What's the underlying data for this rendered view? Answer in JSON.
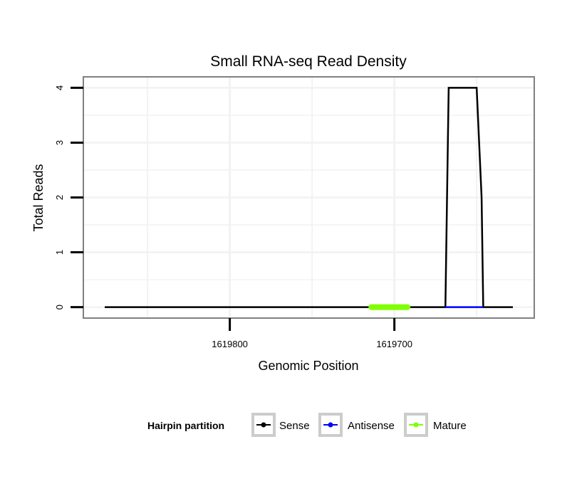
{
  "chart_data": {
    "type": "line",
    "title": "Small RNA-seq Read Density",
    "xlabel": "Genomic Position",
    "ylabel": "Total Reads",
    "xlim": [
      1619889,
      1619615
    ],
    "x_reversed": true,
    "ylim": [
      -0.2,
      4.2
    ],
    "xticks": [
      1619800,
      1619700
    ],
    "xtick_labels": [
      "1619800",
      "1619700"
    ],
    "yticks": [
      0,
      1,
      2,
      3,
      4
    ],
    "ytick_labels": [
      "0",
      "1",
      "2",
      "3",
      "4"
    ],
    "grid": true,
    "legend": {
      "title": "Hairpin partition",
      "placement": "bottom",
      "entries": [
        "Sense",
        "Antisense",
        "Mature"
      ]
    },
    "series": [
      {
        "name": "Sense",
        "color": "#000000",
        "x": [
          1619876,
          1619669,
          1619667,
          1619650,
          1619647,
          1619646,
          1619628
        ],
        "y": [
          0,
          0,
          4,
          4,
          2,
          0,
          0
        ]
      },
      {
        "name": "Antisense",
        "color": "#0000FF",
        "x": [
          1619669,
          1619646
        ],
        "y": [
          0,
          0
        ]
      },
      {
        "name": "Mature",
        "color": "#7FFF00",
        "x": [
          1619714,
          1619692
        ],
        "y": [
          0,
          0
        ]
      }
    ]
  }
}
